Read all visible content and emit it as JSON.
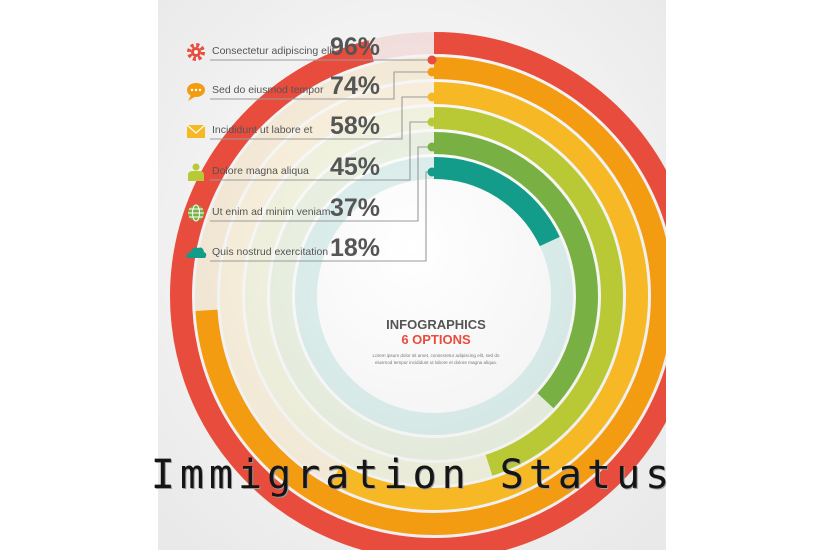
{
  "chart_data": {
    "type": "radial-bar",
    "title": "INFOGRAPHICS",
    "subtitle": "6 OPTIONS",
    "description_lines": [
      "Lorem ipsum dolor sit amet, consectetur adipiscing elit, sed do",
      "eiusmod tempor incididunt ut labore et dolore magna aliqua."
    ],
    "items": [
      {
        "label": "Consectetur adipiscing elit",
        "value": 96,
        "value_label": "96%",
        "color": "#e84c3d",
        "icon": "gear-icon"
      },
      {
        "label": "Sed do eiusmod tempor",
        "value": 74,
        "value_label": "74%",
        "color": "#f39c12",
        "icon": "speech-bubble-icon"
      },
      {
        "label": "Incididunt ut labore et",
        "value": 58,
        "value_label": "58%",
        "color": "#f6b825",
        "icon": "envelope-icon"
      },
      {
        "label": "Dolore magna aliqua",
        "value": 45,
        "value_label": "45%",
        "color": "#b9c935",
        "icon": "person-icon"
      },
      {
        "label": "Ut enim ad minim veniam",
        "value": 37,
        "value_label": "37%",
        "color": "#79b043",
        "icon": "globe-icon"
      },
      {
        "label": "Quis nostrud exercitation",
        "value": 18,
        "value_label": "18%",
        "color": "#139c8a",
        "icon": "cloud-icon"
      }
    ]
  },
  "caption": "Immigration Status"
}
